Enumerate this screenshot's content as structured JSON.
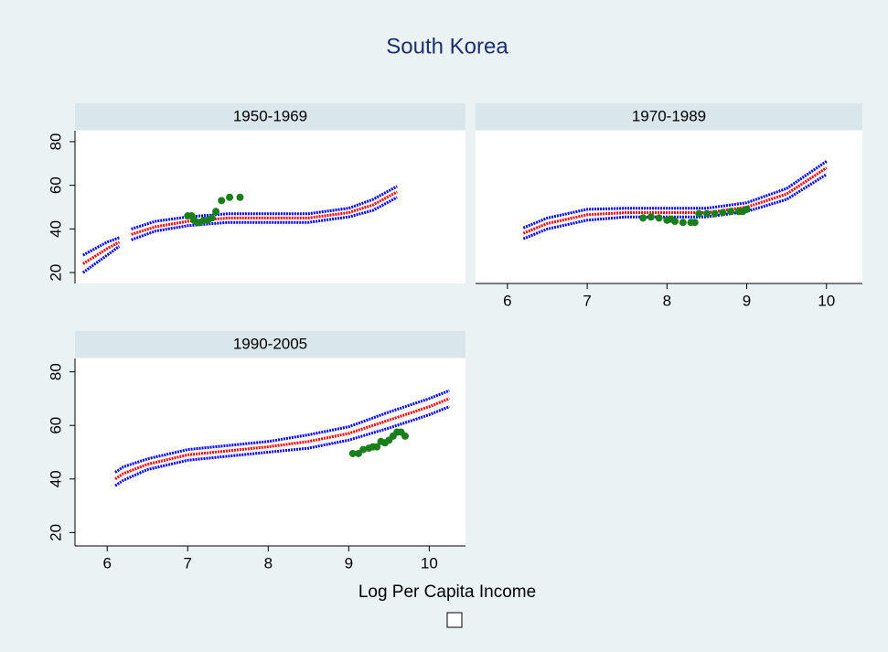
{
  "title": "South Korea",
  "x_label": "Log Per Capita Income",
  "chart_data": [
    {
      "type": "line",
      "title": "1950-1969",
      "xlim": [
        5.6,
        10.45
      ],
      "ylim": [
        15,
        85
      ],
      "yticks": [
        20,
        40,
        60,
        80
      ],
      "series": [
        {
          "color": "#0000ff",
          "style": "line",
          "x": [
            5.7,
            5.85,
            6.0,
            6.15,
            6.22,
            6.3,
            6.6,
            7.0,
            7.5,
            8.0,
            8.5,
            9.0,
            9.3,
            9.6
          ],
          "values": [
            20,
            24,
            28,
            32,
            null,
            35,
            39,
            41.5,
            43,
            43,
            43,
            45.5,
            48.5,
            54.5
          ]
        },
        {
          "color": "#0000ff",
          "style": "line",
          "x": [
            5.7,
            5.85,
            6.0,
            6.15,
            6.22,
            6.3,
            6.6,
            7.0,
            7.5,
            8.0,
            8.5,
            9.0,
            9.3,
            9.6
          ],
          "values": [
            28,
            31,
            34,
            36,
            null,
            40,
            43.5,
            45.5,
            47,
            47,
            47,
            49.5,
            53.5,
            59.5
          ]
        },
        {
          "color": "#ff0000",
          "style": "line",
          "x": [
            5.7,
            5.85,
            6.0,
            6.15,
            6.22,
            6.3,
            6.6,
            7.0,
            7.5,
            8.0,
            8.5,
            9.0,
            9.3,
            9.6
          ],
          "values": [
            24,
            27.5,
            31,
            34,
            null,
            37.5,
            41,
            43.5,
            45,
            45,
            45,
            47.5,
            51,
            57
          ]
        },
        {
          "color": "#1a7f1a",
          "style": "markers",
          "x": [
            7.0,
            7.05,
            7.08,
            7.12,
            7.15,
            7.2,
            7.25,
            7.3,
            7.35,
            7.42,
            7.52,
            7.65
          ],
          "values": [
            46,
            46,
            44,
            43,
            43,
            44,
            44,
            45,
            48,
            53,
            54.5,
            54.5
          ]
        }
      ]
    },
    {
      "type": "line",
      "title": "1970-1989",
      "xlim": [
        5.6,
        10.45
      ],
      "ylim": [
        15,
        85
      ],
      "xticks": [
        6,
        7,
        8,
        9,
        10
      ],
      "series": [
        {
          "color": "#0000ff",
          "style": "line",
          "x": [
            6.1,
            6.15,
            6.2,
            6.5,
            7.0,
            7.5,
            8.0,
            8.5,
            9.0,
            9.5,
            10.0
          ],
          "values": [
            32.5,
            null,
            35.5,
            40,
            44,
            45.5,
            45.5,
            45.5,
            48,
            53.5,
            65
          ]
        },
        {
          "color": "#0000ff",
          "style": "line",
          "x": [
            6.1,
            6.15,
            6.2,
            6.5,
            7.0,
            7.5,
            8.0,
            8.5,
            9.0,
            9.5,
            10.0
          ],
          "values": [
            37.5,
            null,
            40.5,
            45,
            49,
            49.5,
            49.5,
            49.5,
            52,
            58.5,
            71
          ]
        },
        {
          "color": "#ff0000",
          "style": "line",
          "x": [
            6.1,
            6.15,
            6.2,
            6.5,
            7.0,
            7.5,
            8.0,
            8.5,
            9.0,
            9.5,
            10.0
          ],
          "values": [
            35,
            null,
            38,
            42.5,
            46.5,
            47.5,
            47.5,
            47.5,
            50,
            56,
            68
          ]
        },
        {
          "color": "#1a7f1a",
          "style": "markers",
          "x": [
            7.7,
            7.8,
            7.9,
            8.0,
            8.05,
            8.1,
            8.2,
            8.3,
            8.35,
            8.4,
            8.5,
            8.6,
            8.7,
            8.8,
            8.9,
            8.95,
            9.0
          ],
          "values": [
            45,
            45.5,
            45,
            44,
            44.5,
            43.5,
            43,
            43,
            43,
            47,
            47,
            47,
            47.5,
            48,
            48,
            48,
            49
          ]
        }
      ]
    },
    {
      "type": "line",
      "title": "1990-2005",
      "xlim": [
        5.6,
        10.45
      ],
      "ylim": [
        15,
        85
      ],
      "xticks": [
        6,
        7,
        8,
        9,
        10
      ],
      "yticks": [
        20,
        40,
        60,
        80
      ],
      "series": [
        {
          "color": "#0000ff",
          "style": "line",
          "x": [
            6.1,
            6.2,
            6.5,
            7.0,
            7.5,
            8.0,
            8.5,
            9.0,
            9.5,
            10.0,
            10.25
          ],
          "values": [
            37.5,
            39.5,
            43.5,
            47,
            48.5,
            50,
            51.5,
            54.5,
            59,
            64,
            67
          ]
        },
        {
          "color": "#0000ff",
          "style": "line",
          "x": [
            6.1,
            6.2,
            6.5,
            7.0,
            7.5,
            8.0,
            8.5,
            9.0,
            9.5,
            10.0,
            10.25
          ],
          "values": [
            42.5,
            44.5,
            47.5,
            51,
            52.5,
            54,
            56.5,
            59.5,
            65,
            70,
            73
          ]
        },
        {
          "color": "#ff0000",
          "style": "line",
          "x": [
            6.1,
            6.2,
            6.5,
            7.0,
            7.5,
            8.0,
            8.5,
            9.0,
            9.5,
            10.0,
            10.25
          ],
          "values": [
            40,
            42,
            45.5,
            49,
            50.5,
            52,
            54,
            57,
            62,
            67,
            70
          ]
        },
        {
          "color": "#1a7f1a",
          "style": "markers",
          "x": [
            9.05,
            9.12,
            9.18,
            9.25,
            9.3,
            9.35,
            9.4,
            9.45,
            9.5,
            9.55,
            9.6,
            9.65,
            9.7
          ],
          "values": [
            49.5,
            49.5,
            51,
            51.5,
            52,
            52,
            54,
            53.5,
            54.5,
            56,
            57.5,
            57.5,
            56
          ]
        }
      ]
    }
  ]
}
